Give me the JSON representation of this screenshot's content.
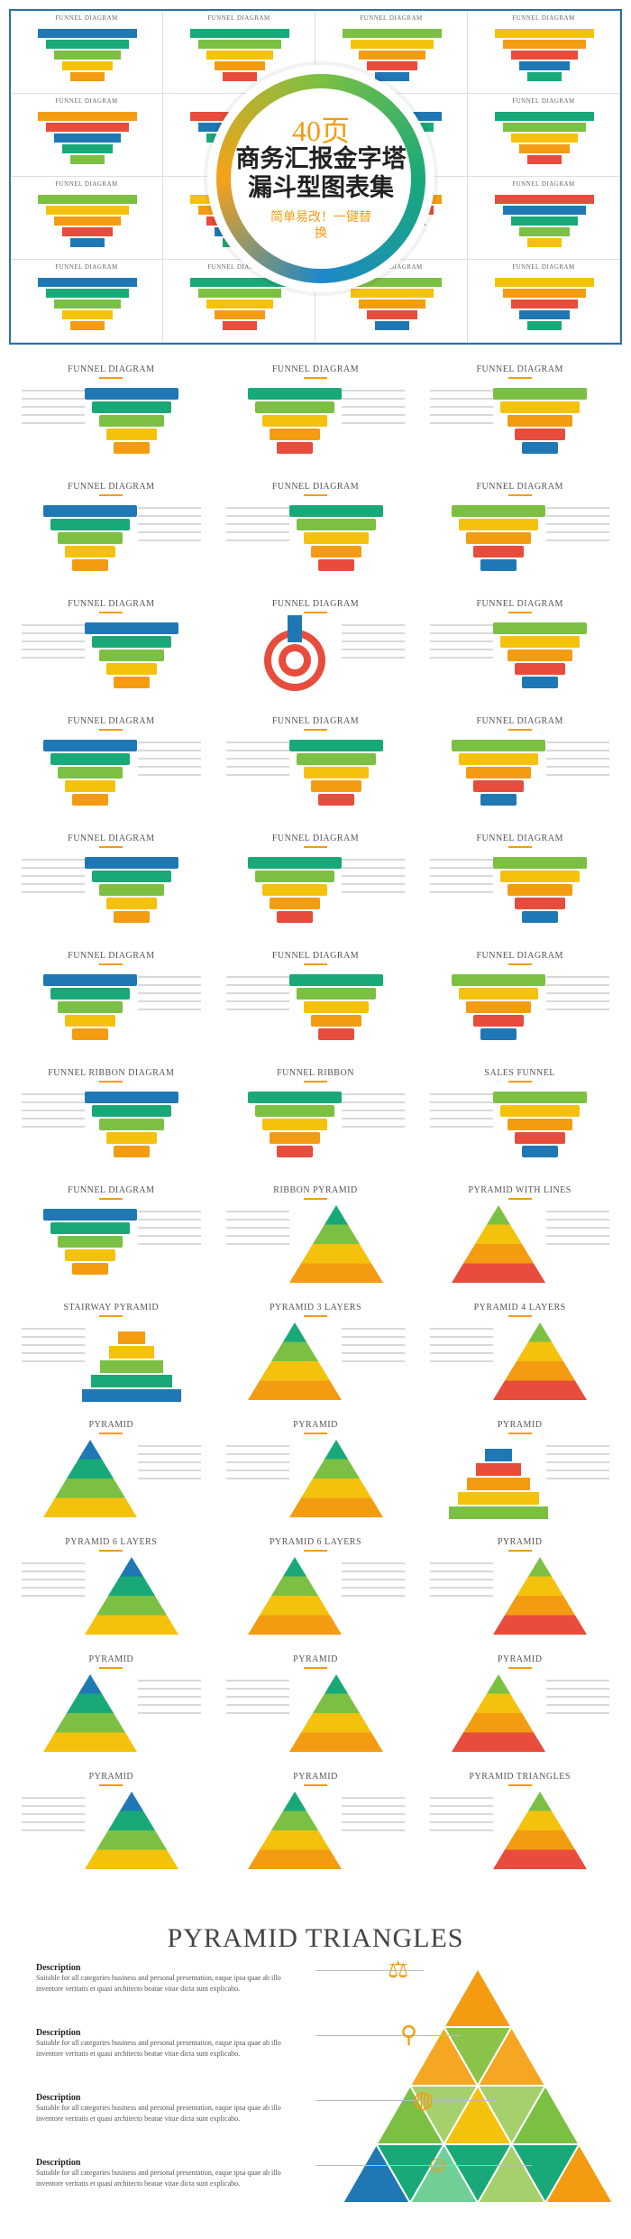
{
  "hero": {
    "count": "40页",
    "title_line1": "商务汇报金字塔",
    "title_line2": "漏斗型图表集",
    "subtitle": "简单易改！一键替换",
    "thumb_labels": [
      "FUNNEL DIAGRAM",
      "FUNNEL DIAGRAM",
      "FUNNEL DIAGRAM",
      "FUNNEL DIAGRAM",
      "FUNNEL DIAGRAM",
      "",
      "",
      "FUNNEL DIAGRAM",
      "FUNNEL DIAGRAM",
      "",
      "",
      "FUNNEL DIAGRAM",
      "FUNNEL DIAGRAM",
      "FUNNEL DIAGRAM",
      "FUNNEL DIAGRAM",
      "FUNNEL DIAGRAM"
    ]
  },
  "slides": [
    {
      "title": "FUNNEL DIAGRAM",
      "kind": "funnel"
    },
    {
      "title": "FUNNEL DIAGRAM",
      "kind": "funnel"
    },
    {
      "title": "FUNNEL DIAGRAM",
      "kind": "funnel"
    },
    {
      "title": "FUNNEL DIAGRAM",
      "kind": "funnel"
    },
    {
      "title": "FUNNEL DIAGRAM",
      "kind": "funnel"
    },
    {
      "title": "FUNNEL DIAGRAM",
      "kind": "funnel"
    },
    {
      "title": "FUNNEL DIAGRAM",
      "kind": "funnel"
    },
    {
      "title": "FUNNEL DIAGRAM",
      "kind": "target"
    },
    {
      "title": "FUNNEL DIAGRAM",
      "kind": "funnel"
    },
    {
      "title": "FUNNEL DIAGRAM",
      "kind": "funnel"
    },
    {
      "title": "FUNNEL DIAGRAM",
      "kind": "funnel"
    },
    {
      "title": "FUNNEL DIAGRAM",
      "kind": "funnel"
    },
    {
      "title": "FUNNEL DIAGRAM",
      "kind": "funnel"
    },
    {
      "title": "FUNNEL DIAGRAM",
      "kind": "funnel"
    },
    {
      "title": "FUNNEL DIAGRAM",
      "kind": "funnel"
    },
    {
      "title": "FUNNEL DIAGRAM",
      "kind": "funnel"
    },
    {
      "title": "FUNNEL DIAGRAM",
      "kind": "funnel"
    },
    {
      "title": "FUNNEL DIAGRAM",
      "kind": "funnel"
    },
    {
      "title": "FUNNEL RIBBON DIAGRAM",
      "kind": "funnel"
    },
    {
      "title": "FUNNEL RIBBON",
      "kind": "funnel"
    },
    {
      "title": "SALES FUNNEL",
      "kind": "funnel"
    },
    {
      "title": "FUNNEL DIAGRAM",
      "kind": "funnel"
    },
    {
      "title": "RIBBON PYRAMID",
      "kind": "pyramid"
    },
    {
      "title": "PYRAMID WITH LINES",
      "kind": "pyramid"
    },
    {
      "title": "STAIRWAY PYRAMID",
      "kind": "stairs"
    },
    {
      "title": "PYRAMID 3 LAYERS",
      "kind": "pyramid"
    },
    {
      "title": "PYRAMID 4 LAYERS",
      "kind": "pyramid"
    },
    {
      "title": "PYRAMID",
      "kind": "pyramid"
    },
    {
      "title": "PYRAMID",
      "kind": "pyramid"
    },
    {
      "title": "PYRAMID",
      "kind": "stairs"
    },
    {
      "title": "PYRAMID 6 LAYERS",
      "kind": "pyramid"
    },
    {
      "title": "PYRAMID 6 LAYERS",
      "kind": "pyramid"
    },
    {
      "title": "PYRAMID",
      "kind": "pyramid"
    },
    {
      "title": "PYRAMID",
      "kind": "pyramid"
    },
    {
      "title": "PYRAMID",
      "kind": "pyramid"
    },
    {
      "title": "PYRAMID",
      "kind": "pyramid"
    },
    {
      "title": "PYRAMID",
      "kind": "pyramid"
    },
    {
      "title": "PYRAMID",
      "kind": "pyramid"
    },
    {
      "title": "PYRAMID TRIANGLES",
      "kind": "pyramid"
    }
  ],
  "bottom": {
    "title": "PYRAMID TRIANGLES",
    "items": [
      {
        "label": "Description",
        "text": "Suitable for all categories business and personal presentation, eaque ipsa quae ab illo inventore veritatis et quasi architecto beatae vitae dicta sunt explicabo.",
        "icon": "scale-icon"
      },
      {
        "label": "Description",
        "text": "Suitable for all categories business and personal presentation, eaque ipsa quae ab illo inventore veritatis et quasi architecto beatae vitae dicta sunt explicabo.",
        "icon": "magnifier-icon"
      },
      {
        "label": "Description",
        "text": "Suitable for all categories business and personal presentation, eaque ipsa quae ab illo inventore veritatis et quasi architecto beatae vitae dicta sunt explicabo.",
        "icon": "globe-icon"
      },
      {
        "label": "Description",
        "text": "Suitable for all categories business and personal presentation, eaque ipsa quae ab illo inventore veritatis et quasi architecto beatae vitae dicta sunt explicabo.",
        "icon": "people-icon"
      }
    ]
  },
  "colors": {
    "blue": "#1f78b4",
    "teal": "#19a979",
    "green": "#7bc043",
    "yellow": "#f4c20d",
    "orange": "#f39c12",
    "red": "#e74c3c",
    "dark": "#2c3e50",
    "purple": "#8e44ad",
    "border": "#2f6fa8"
  }
}
